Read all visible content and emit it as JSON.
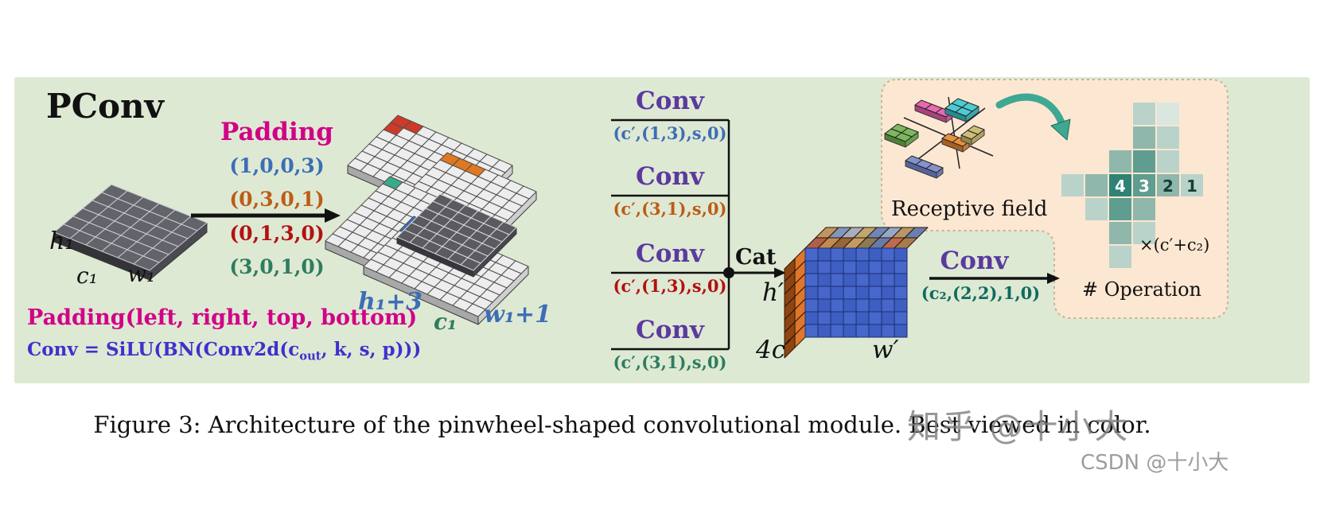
{
  "pconv": {
    "title": "PConv",
    "padding": {
      "title": "Padding",
      "tuples": [
        {
          "text": "(1,0,0,3)",
          "color": "#3d6eb5"
        },
        {
          "text": "(0,3,0,1)",
          "color": "#bc5d15"
        },
        {
          "text": "(0,1,3,0)",
          "color": "#b31111"
        },
        {
          "text": "(3,0,1,0)",
          "color": "#2e7d5e"
        }
      ]
    },
    "input_tensor": {
      "h": "h₁",
      "c": "c₁",
      "w": "w₁"
    },
    "padded_tensor": {
      "h": "h₁+3",
      "c": "c₁",
      "w": "w₁+1"
    },
    "formulas": {
      "padding": "Padding(left, right, top, bottom)",
      "conv": {
        "pre": "Conv = SiLU(BN(Conv2d(c",
        "sub": "out",
        "post": ", k, s, p)))"
      }
    },
    "branches": [
      {
        "label": "Conv",
        "params": "(c′,(1,3),s,0)",
        "color": "#3d6eb5"
      },
      {
        "label": "Conv",
        "params": "(c′,(3,1),s,0)",
        "color": "#bc5d15"
      },
      {
        "label": "Conv",
        "params": "(c′,(1,3),s,0)",
        "color": "#b31111"
      },
      {
        "label": "Conv",
        "params": "(c′,(3,1),s,0)",
        "color": "#2e7d5e"
      }
    ],
    "cat": "Cat",
    "output_tensor": {
      "h": "h′",
      "c": "4c′",
      "w": "w′"
    },
    "final_conv": {
      "label": "Conv",
      "params": "(c₂,(2,2),1,0)",
      "params_color": "#0f6b5f"
    },
    "inset": {
      "receptive_field": "Receptive field",
      "op_numbers": [
        "4",
        "3",
        "2",
        "1"
      ],
      "multiplier": "×(c′+c₂)",
      "operation": "# Operation"
    },
    "colors": {
      "magenta": "#d10087",
      "conv_purple": "#5b3a9e",
      "formula_blue": "#4030cc",
      "panel_green": "#dee9d4",
      "inset_peach": "#fce7d2",
      "label_blue": "#3d6eb5",
      "label_green": "#2e7d5e"
    }
  },
  "caption": "Figure 3: Architecture of the pinwheel-shaped convolutional module. Best viewed in color.",
  "watermarks": {
    "zhihu": "知乎 @十小大",
    "csdn": "CSDN @十小大"
  }
}
